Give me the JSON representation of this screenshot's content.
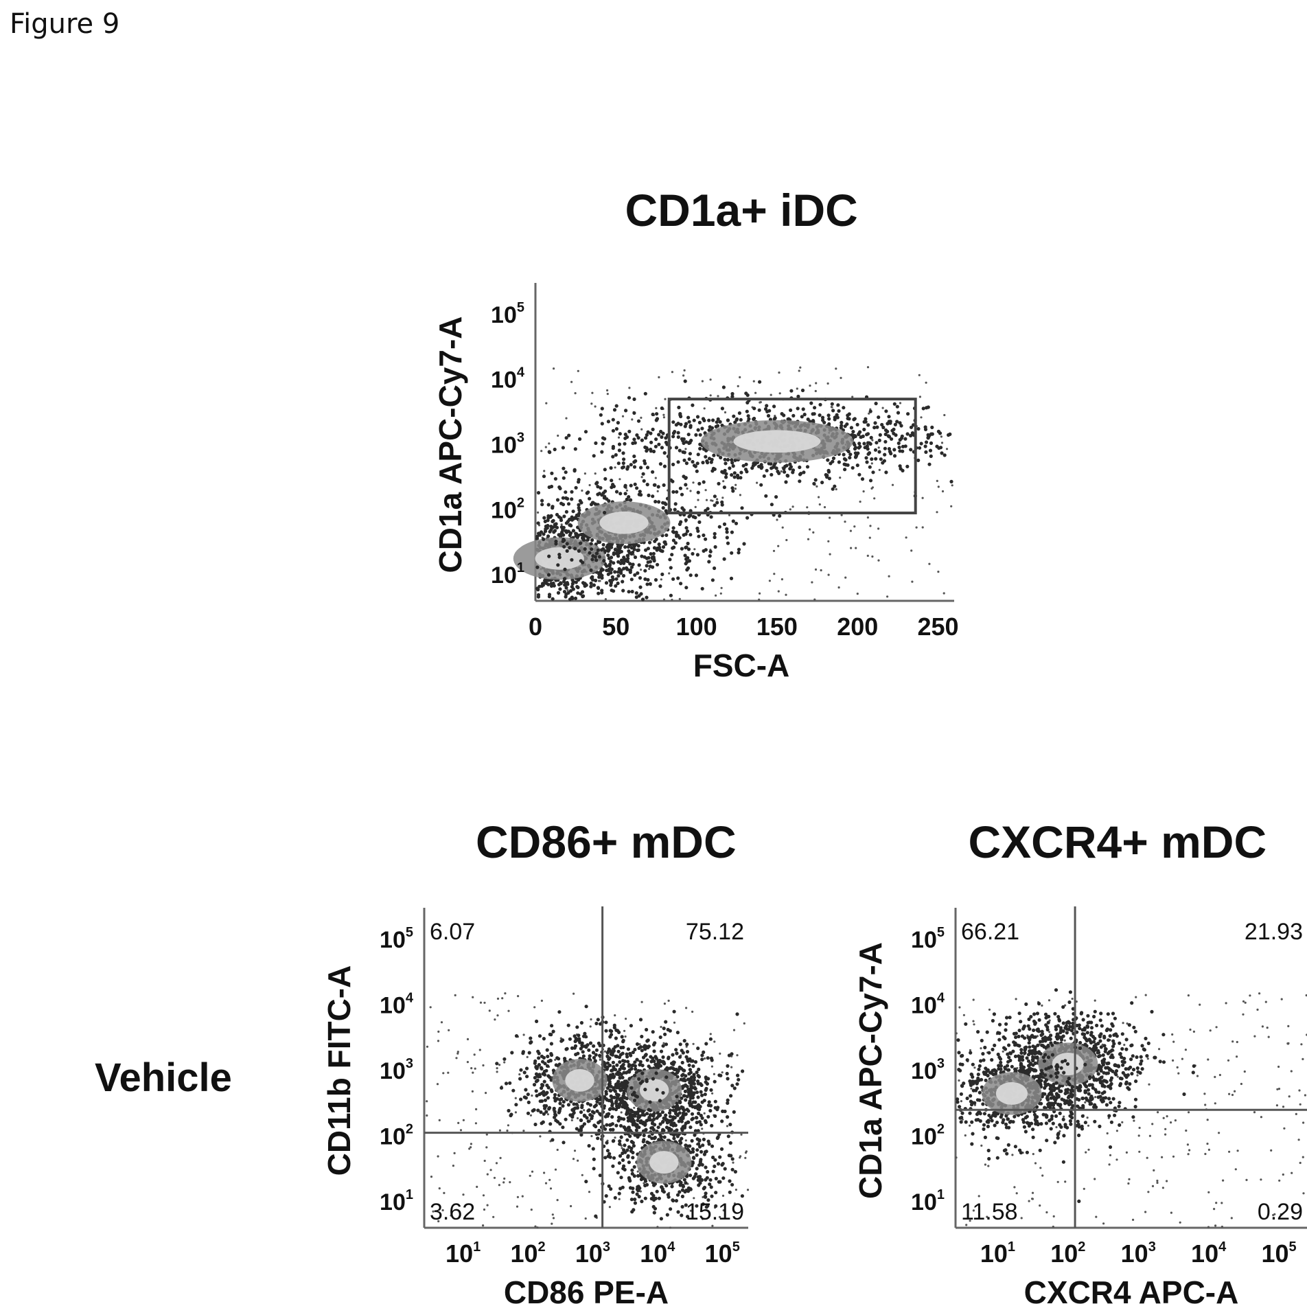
{
  "figure_label": "Figure 9",
  "row_label": "Vehicle",
  "chart_data": [
    {
      "type": "scatter",
      "title": "CD1a+ iDC",
      "xlabel": "FSC-A",
      "ylabel": "CD1a APC-Cy7-A",
      "x_ticks": [
        "0",
        "50",
        "100",
        "150",
        "200",
        "250"
      ],
      "y_ticks": [
        {
          "base": "10",
          "exp": "1"
        },
        {
          "base": "10",
          "exp": "2"
        },
        {
          "base": "10",
          "exp": "3"
        },
        {
          "base": "10",
          "exp": "4"
        },
        {
          "base": "10",
          "exp": "5"
        }
      ],
      "x_scale": "linear",
      "y_scale": "log",
      "xlim": [
        0,
        260
      ],
      "y_decades": [
        0.6,
        5.4
      ],
      "gate": {
        "x": [
          83,
          236
        ],
        "y_log10": [
          1.95,
          3.7
        ]
      },
      "populations": [
        {
          "x": 15,
          "y_log10": 1.25,
          "density": "high"
        },
        {
          "x": 55,
          "y_log10": 1.8,
          "density": "medium"
        },
        {
          "x": 150,
          "y_log10": 3.05,
          "density": "high"
        }
      ],
      "quadrants": []
    },
    {
      "type": "scatter",
      "title": "CD86+ mDC",
      "xlabel": "CD86 PE-A",
      "ylabel": "CD11b FITC-A",
      "x_ticks": [
        {
          "base": "10",
          "exp": "1"
        },
        {
          "base": "10",
          "exp": "2"
        },
        {
          "base": "10",
          "exp": "3"
        },
        {
          "base": "10",
          "exp": "4"
        },
        {
          "base": "10",
          "exp": "5"
        }
      ],
      "y_ticks": [
        {
          "base": "10",
          "exp": "1"
        },
        {
          "base": "10",
          "exp": "2"
        },
        {
          "base": "10",
          "exp": "3"
        },
        {
          "base": "10",
          "exp": "4"
        },
        {
          "base": "10",
          "exp": "5"
        }
      ],
      "x_scale": "log",
      "y_scale": "log",
      "x_decades": [
        0.4,
        5.4
      ],
      "y_decades": [
        0.6,
        5.4
      ],
      "quadrant_gate_log10": {
        "x": 3.15,
        "y": 2.05
      },
      "populations": [
        {
          "x_log10": 3.95,
          "y_log10": 2.7,
          "density": "high"
        },
        {
          "x_log10": 2.8,
          "y_log10": 2.85,
          "density": "medium"
        },
        {
          "x_log10": 4.1,
          "y_log10": 1.6,
          "density": "medium"
        }
      ],
      "quadrants": [
        {
          "position": "top-left",
          "value": "6.07"
        },
        {
          "position": "top-right",
          "value": "75.12"
        },
        {
          "position": "bottom-left",
          "value": "3.62"
        },
        {
          "position": "bottom-right",
          "value": "15.19"
        }
      ]
    },
    {
      "type": "scatter",
      "title": "CXCR4+ mDC",
      "xlabel": "CXCR4 APC-A",
      "ylabel": "CD1a APC-Cy7-A",
      "x_ticks": [
        {
          "base": "10",
          "exp": "1"
        },
        {
          "base": "10",
          "exp": "2"
        },
        {
          "base": "10",
          "exp": "3"
        },
        {
          "base": "10",
          "exp": "4"
        },
        {
          "base": "10",
          "exp": "5"
        }
      ],
      "y_ticks": [
        {
          "base": "10",
          "exp": "1"
        },
        {
          "base": "10",
          "exp": "2"
        },
        {
          "base": "10",
          "exp": "3"
        },
        {
          "base": "10",
          "exp": "4"
        },
        {
          "base": "10",
          "exp": "5"
        }
      ],
      "x_scale": "log",
      "y_scale": "log",
      "x_decades": [
        0.4,
        5.4
      ],
      "y_decades": [
        0.6,
        5.4
      ],
      "quadrant_gate_log10": {
        "x": 2.1,
        "y": 2.4
      },
      "populations": [
        {
          "x_log10": 2.0,
          "y_log10": 3.1,
          "density": "high"
        },
        {
          "x_log10": 1.2,
          "y_log10": 2.65,
          "density": "medium"
        }
      ],
      "quadrants": [
        {
          "position": "top-left",
          "value": "66.21"
        },
        {
          "position": "top-right",
          "value": "21.93"
        },
        {
          "position": "bottom-left",
          "value": "11.58"
        },
        {
          "position": "bottom-right",
          "value": "0.29"
        }
      ]
    }
  ]
}
